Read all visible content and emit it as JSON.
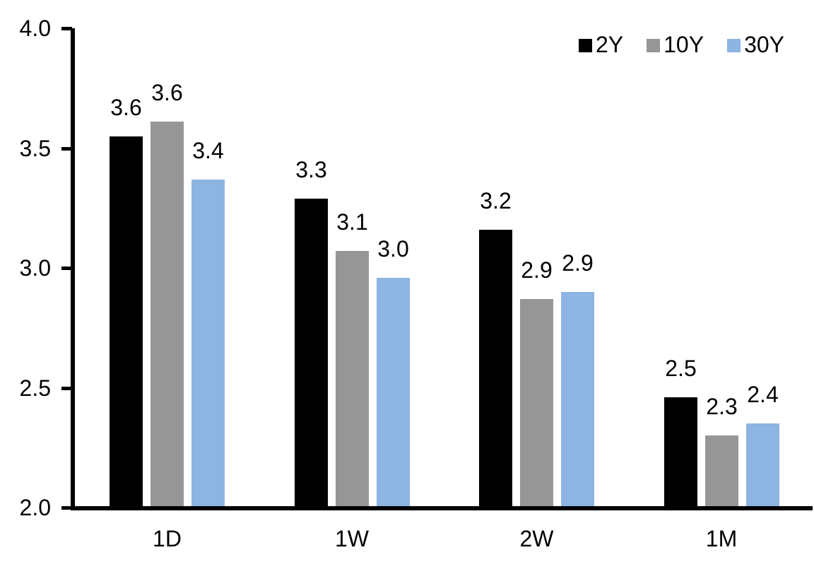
{
  "chart_data": {
    "type": "bar",
    "title": "",
    "xlabel": "",
    "ylabel": "",
    "categories": [
      "1D",
      "1W",
      "2W",
      "1M"
    ],
    "series": [
      {
        "name": "2Y",
        "color": "#000000",
        "values": [
          3.55,
          3.29,
          3.16,
          2.46
        ],
        "bar_labels": [
          "3.6",
          "3.3",
          "3.2",
          "2.5"
        ]
      },
      {
        "name": "10Y",
        "color": "#969696",
        "values": [
          3.61,
          3.07,
          2.87,
          2.3
        ],
        "bar_labels": [
          "3.6",
          "3.1",
          "2.9",
          "2.3"
        ]
      },
      {
        "name": "30Y",
        "color": "#8DB4E2",
        "values": [
          3.37,
          2.96,
          2.9,
          2.35
        ],
        "bar_labels": [
          "3.4",
          "3.0",
          "2.9",
          "2.4"
        ]
      }
    ],
    "ylim": [
      2.0,
      4.0
    ],
    "yticks": [
      {
        "value": 4.0,
        "label": "4.0"
      },
      {
        "value": 3.5,
        "label": "3.5"
      },
      {
        "value": 3.0,
        "label": "3.0"
      },
      {
        "value": 2.5,
        "label": "2.5"
      },
      {
        "value": 2.0,
        "label": "2.0"
      }
    ],
    "legend": {
      "position": "top-right",
      "entries": [
        "2Y",
        "10Y",
        "30Y"
      ]
    },
    "grid": false,
    "axis_color": "#000000",
    "text_color": "#000000",
    "background": "#FFFFFF"
  }
}
